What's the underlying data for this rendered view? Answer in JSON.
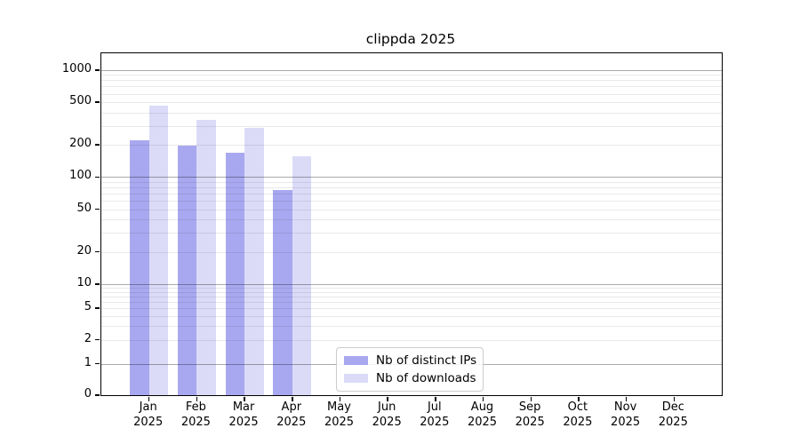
{
  "chart_data": {
    "type": "bar",
    "title": "clippda 2025",
    "y_scale": "symlog",
    "y_ticks": [
      0,
      1,
      2,
      5,
      10,
      20,
      50,
      100,
      200,
      500,
      1000
    ],
    "y_axis_top_value": 1430,
    "categories": [
      "Jan 2025",
      "Feb 2025",
      "Mar 2025",
      "Apr 2025",
      "May 2025",
      "Jun 2025",
      "Jul 2025",
      "Aug 2025",
      "Sep 2025",
      "Oct 2025",
      "Nov 2025",
      "Dec 2025"
    ],
    "x_labels": [
      {
        "month": "Jan",
        "year": "2025"
      },
      {
        "month": "Feb",
        "year": "2025"
      },
      {
        "month": "Mar",
        "year": "2025"
      },
      {
        "month": "Apr",
        "year": "2025"
      },
      {
        "month": "May",
        "year": "2025"
      },
      {
        "month": "Jun",
        "year": "2025"
      },
      {
        "month": "Jul",
        "year": "2025"
      },
      {
        "month": "Aug",
        "year": "2025"
      },
      {
        "month": "Sep",
        "year": "2025"
      },
      {
        "month": "Oct",
        "year": "2025"
      },
      {
        "month": "Nov",
        "year": "2025"
      },
      {
        "month": "Dec",
        "year": "2025"
      }
    ],
    "series": [
      {
        "name": "Nb of distinct IPs",
        "color": "#a8a8f0",
        "values": [
          220,
          197,
          170,
          75,
          0,
          0,
          0,
          0,
          0,
          0,
          0,
          0
        ]
      },
      {
        "name": "Nb of downloads",
        "color": "#dbdbf8",
        "values": [
          460,
          340,
          287,
          157,
          0,
          0,
          0,
          0,
          0,
          0,
          0,
          0
        ]
      }
    ],
    "legend": {
      "position": "lower center",
      "entries": [
        "Nb of distinct IPs",
        "Nb of downloads"
      ]
    },
    "grid": {
      "enabled": true,
      "major_line_color": "rgba(0,0,0,0.33)",
      "minor_line_color": "rgba(0,0,0,0.085)"
    },
    "colors": {
      "background": "#ffffff",
      "axes": "#000000",
      "text": "#000000"
    }
  }
}
